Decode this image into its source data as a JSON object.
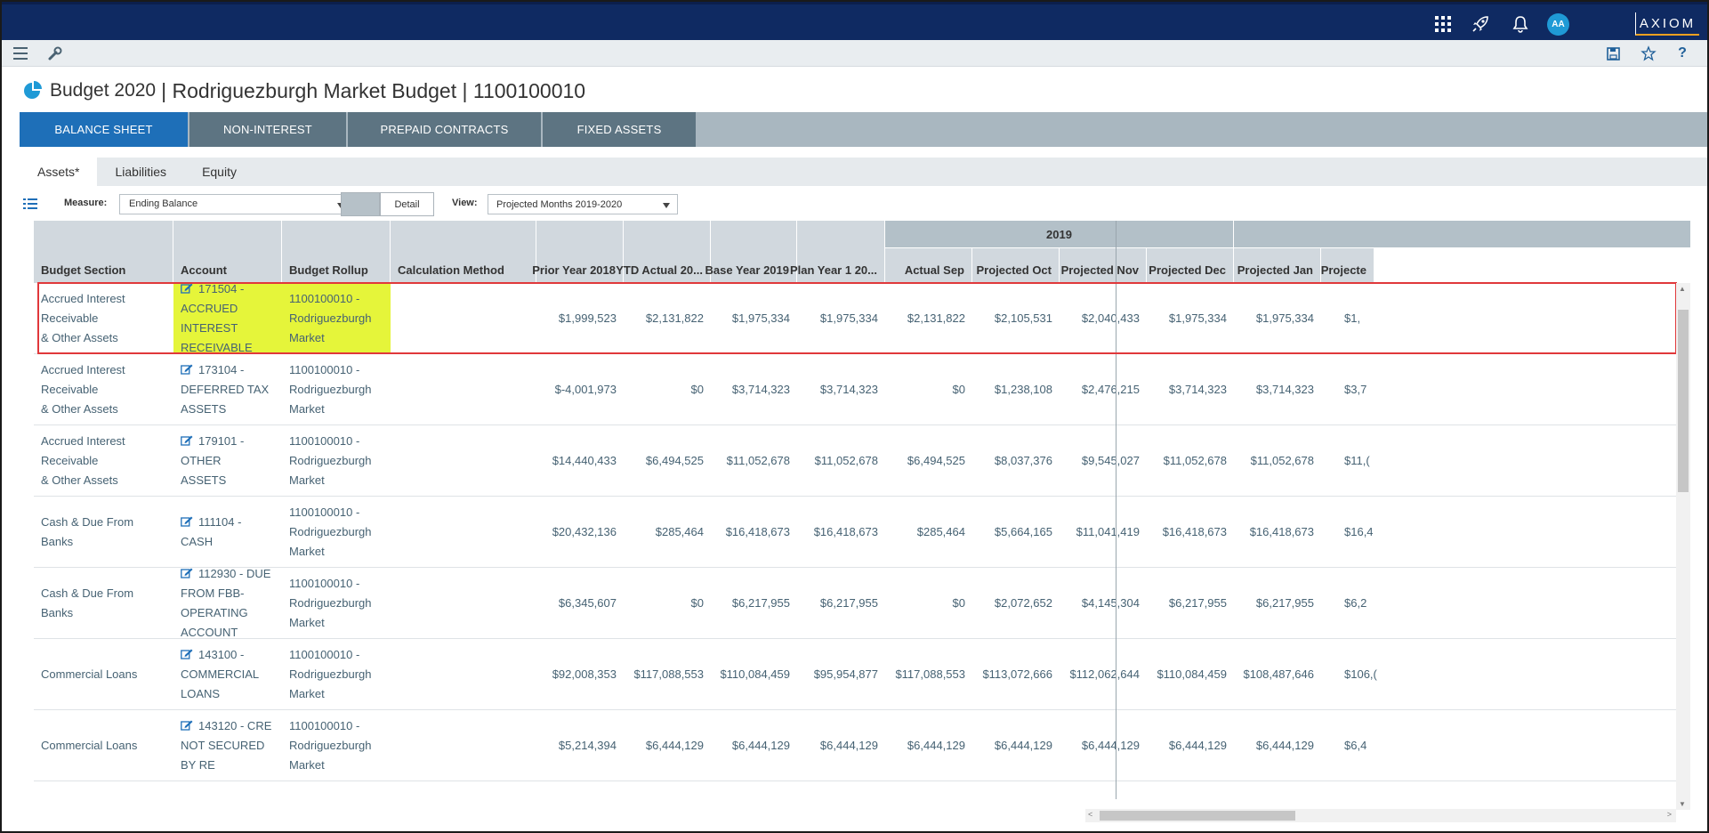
{
  "brand": "AXIOM",
  "user_initials": "AA",
  "title": {
    "part1": "Budget 2020",
    "part2": "| Rodriguezburgh Market Budget | 1100100010"
  },
  "tabs": [
    "BALANCE SHEET",
    "NON-INTEREST",
    "PREPAID CONTRACTS",
    "FIXED ASSETS"
  ],
  "subtabs": [
    "Assets*",
    "Liabilities",
    "Equity"
  ],
  "controls": {
    "measure_label": "Measure:",
    "measure_value": "Ending Balance",
    "detail_label": "Detail",
    "view_label": "View:",
    "view_value": "Projected Months 2019-2020"
  },
  "help_label": "?",
  "grid": {
    "group_2019": "2019",
    "columns": [
      "Budget Section",
      "Account",
      "Budget Rollup",
      "Calculation Method",
      "Prior Year 2018",
      "YTD Actual 20...",
      "Base Year 2019",
      "Plan Year 1 20...",
      "Actual Sep",
      "Projected Oct",
      "Projected Nov",
      "Projected Dec",
      "Projected Jan",
      "Projecte"
    ],
    "rows": [
      {
        "section": [
          "Accrued Interest Receivable",
          "& Other Assets"
        ],
        "account": [
          "171504 -",
          "ACCRUED INTEREST",
          "RECEIVABLE"
        ],
        "rollup": [
          "1100100010 -",
          "Rodriguezburgh",
          "Market"
        ],
        "values": [
          "$1,999,523",
          "$2,131,822",
          "$1,975,334",
          "$1,975,334",
          "$2,131,822",
          "$2,105,531",
          "$2,040,433",
          "$1,975,334",
          "$1,975,334",
          "$1,"
        ]
      },
      {
        "section": [
          "Accrued Interest Receivable",
          "& Other Assets"
        ],
        "account": [
          "173104 -",
          "DEFERRED TAX",
          "ASSETS"
        ],
        "rollup": [
          "1100100010 -",
          "Rodriguezburgh",
          "Market"
        ],
        "values": [
          "$-4,001,973",
          "$0",
          "$3,714,323",
          "$3,714,323",
          "$0",
          "$1,238,108",
          "$2,476,215",
          "$3,714,323",
          "$3,714,323",
          "$3,7"
        ]
      },
      {
        "section": [
          "Accrued Interest Receivable",
          "& Other Assets"
        ],
        "account": [
          "179101 - OTHER",
          "ASSETS"
        ],
        "rollup": [
          "1100100010 -",
          "Rodriguezburgh",
          "Market"
        ],
        "values": [
          "$14,440,433",
          "$6,494,525",
          "$11,052,678",
          "$11,052,678",
          "$6,494,525",
          "$8,037,376",
          "$9,545,027",
          "$11,052,678",
          "$11,052,678",
          "$11,("
        ]
      },
      {
        "section": [
          "Cash & Due From Banks"
        ],
        "account": [
          "111104 - CASH"
        ],
        "rollup": [
          "1100100010 -",
          "Rodriguezburgh",
          "Market"
        ],
        "values": [
          "$20,432,136",
          "$285,464",
          "$16,418,673",
          "$16,418,673",
          "$285,464",
          "$5,664,165",
          "$11,041,419",
          "$16,418,673",
          "$16,418,673",
          "$16,4"
        ]
      },
      {
        "section": [
          "Cash & Due From Banks"
        ],
        "account": [
          "112930 - DUE",
          "FROM FBB-",
          "OPERATING",
          "ACCOUNT"
        ],
        "rollup": [
          "1100100010 -",
          "Rodriguezburgh",
          "Market"
        ],
        "values": [
          "$6,345,607",
          "$0",
          "$6,217,955",
          "$6,217,955",
          "$0",
          "$2,072,652",
          "$4,145,304",
          "$6,217,955",
          "$6,217,955",
          "$6,2"
        ]
      },
      {
        "section": [
          "Commercial Loans"
        ],
        "account": [
          "143100 -",
          "COMMERCIAL",
          "LOANS"
        ],
        "rollup": [
          "1100100010 -",
          "Rodriguezburgh",
          "Market"
        ],
        "values": [
          "$92,008,353",
          "$117,088,553",
          "$110,084,459",
          "$95,954,877",
          "$117,088,553",
          "$113,072,666",
          "$112,062,644",
          "$110,084,459",
          "$108,487,646",
          "$106,("
        ]
      },
      {
        "section": [
          "Commercial Loans"
        ],
        "account": [
          "143120 - CRE",
          "NOT SECURED BY RE"
        ],
        "rollup": [
          "1100100010 -",
          "Rodriguezburgh",
          "Market"
        ],
        "values": [
          "$5,214,394",
          "$6,444,129",
          "$6,444,129",
          "$6,444,129",
          "$6,444,129",
          "$6,444,129",
          "$6,444,129",
          "$6,444,129",
          "$6,444,129",
          "$6,4"
        ]
      }
    ]
  },
  "colors": {
    "topbar": "#0f2a62",
    "tab_active": "#1e6fb8",
    "tab_inactive": "#5d7482",
    "highlight_yellow": "#e5f53a",
    "selection_border": "#e0383b",
    "accent_orange": "#f0a020"
  },
  "icons": [
    "apps-grid-icon",
    "rocket-icon",
    "bell-icon",
    "menu-icon",
    "wrench-icon",
    "save-icon",
    "star-icon",
    "help-icon",
    "pie-chart-icon",
    "list-view-icon",
    "edit-icon"
  ]
}
